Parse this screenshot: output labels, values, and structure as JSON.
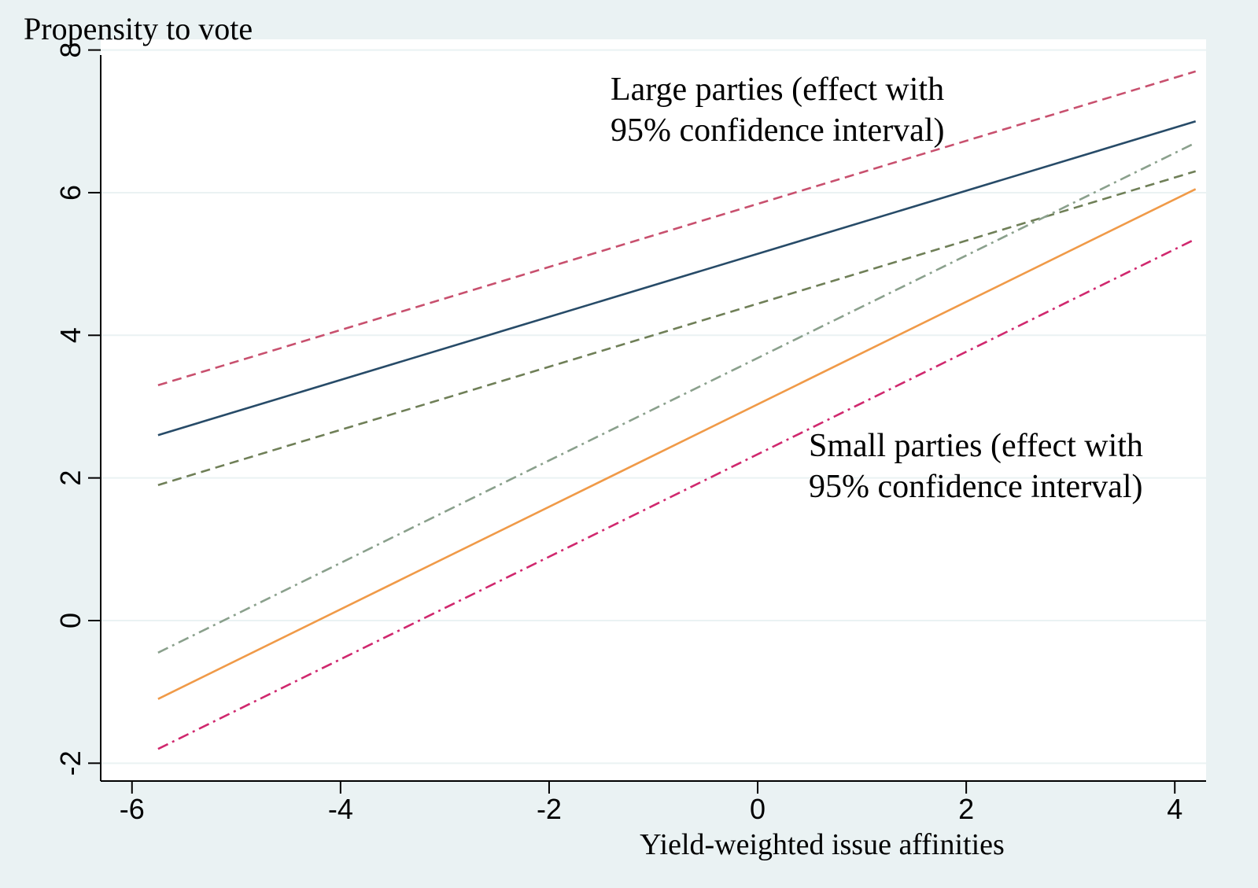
{
  "chart_data": {
    "type": "line",
    "title": "",
    "xlabel": "Yield-weighted issue affinities",
    "ylabel": "Propensity to vote",
    "xlim": [
      -6.3,
      4.3
    ],
    "ylim": [
      -2.25,
      8.15
    ],
    "x_ticks": [
      -6,
      -4,
      -2,
      0,
      2,
      4
    ],
    "x_tick_labels": [
      "-6",
      "-4",
      "-2",
      "0",
      "2",
      "4"
    ],
    "y_ticks": [
      -2,
      0,
      2,
      4,
      6,
      8
    ],
    "y_tick_labels": [
      "-2",
      "0",
      "2",
      "4",
      "6",
      "8"
    ],
    "grid": "horizontal",
    "legend": "none",
    "series": [
      {
        "x": [
          -5.75,
          4.2
        ],
        "y": [
          3.3,
          7.7
        ],
        "color": "#c8506e",
        "dash": "dashed"
      },
      {
        "x": [
          -5.75,
          4.2
        ],
        "y": [
          2.6,
          7.0
        ],
        "color": "#274b68",
        "dash": "solid"
      },
      {
        "x": [
          -5.75,
          4.2
        ],
        "y": [
          1.9,
          6.3
        ],
        "color": "#6f7f57",
        "dash": "dashed"
      },
      {
        "x": [
          -5.75,
          4.2
        ],
        "y": [
          -0.45,
          6.7
        ],
        "color": "#8aa08c",
        "dash": "dashdot"
      },
      {
        "x": [
          -5.75,
          4.2
        ],
        "y": [
          -1.1,
          6.05
        ],
        "color": "#f09a48",
        "dash": "solid"
      },
      {
        "x": [
          -5.75,
          4.2
        ],
        "y": [
          -1.8,
          5.35
        ],
        "color": "#d0286e",
        "dash": "dashdot"
      }
    ],
    "annotations": [
      {
        "lines": [
          "Large parties (effect with",
          "95% confidence interval)"
        ]
      },
      {
        "lines": [
          "Small parties (effect with",
          "95% confidence interval)"
        ]
      }
    ]
  }
}
